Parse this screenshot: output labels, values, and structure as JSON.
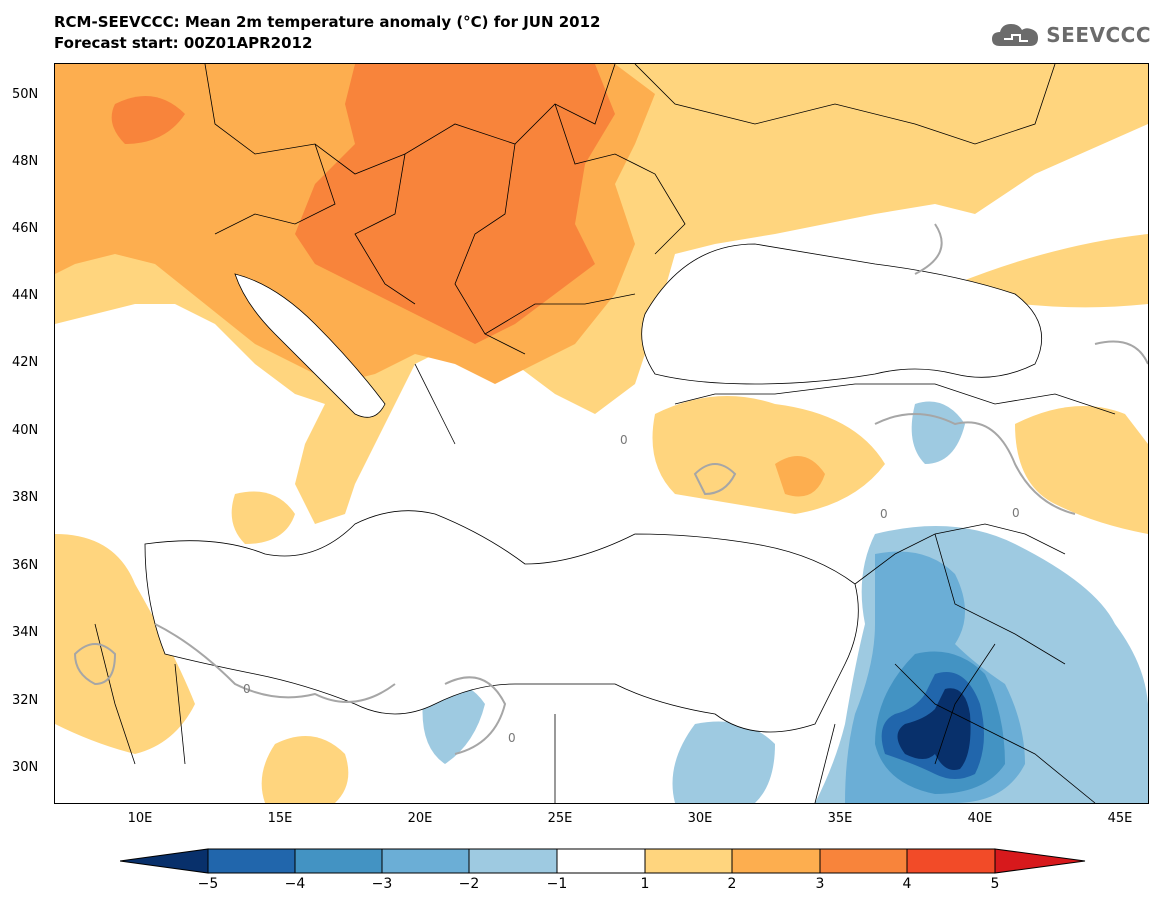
{
  "title": {
    "line1": "RCM-SEEVCCC: Mean 2m temperature anomaly (°C) for JUN 2012",
    "line2": "Forecast start: 00Z01APR2012"
  },
  "logo": {
    "text": "SEEVCCC",
    "icon": "cloud-icon"
  },
  "map": {
    "lon_range": [
      7,
      46
    ],
    "lat_range": [
      29,
      51
    ],
    "lat_labels": [
      "50N",
      "48N",
      "46N",
      "44N",
      "42N",
      "40N",
      "38N",
      "36N",
      "34N",
      "32N",
      "30N"
    ],
    "lon_labels": [
      "10E",
      "15E",
      "20E",
      "25E",
      "30E",
      "35E",
      "40E",
      "45E"
    ],
    "contour_label": "0"
  },
  "colorbar": {
    "labels": [
      "−5",
      "−4",
      "−3",
      "−2",
      "−1",
      "1",
      "2",
      "3",
      "4",
      "5"
    ],
    "colors": [
      "#08306b",
      "#2166ac",
      "#4393c3",
      "#6baed6",
      "#9ecae1",
      "#ffffff",
      "#ffd57e",
      "#fdae4f",
      "#f8843b",
      "#f24b28",
      "#d7191c"
    ]
  }
}
